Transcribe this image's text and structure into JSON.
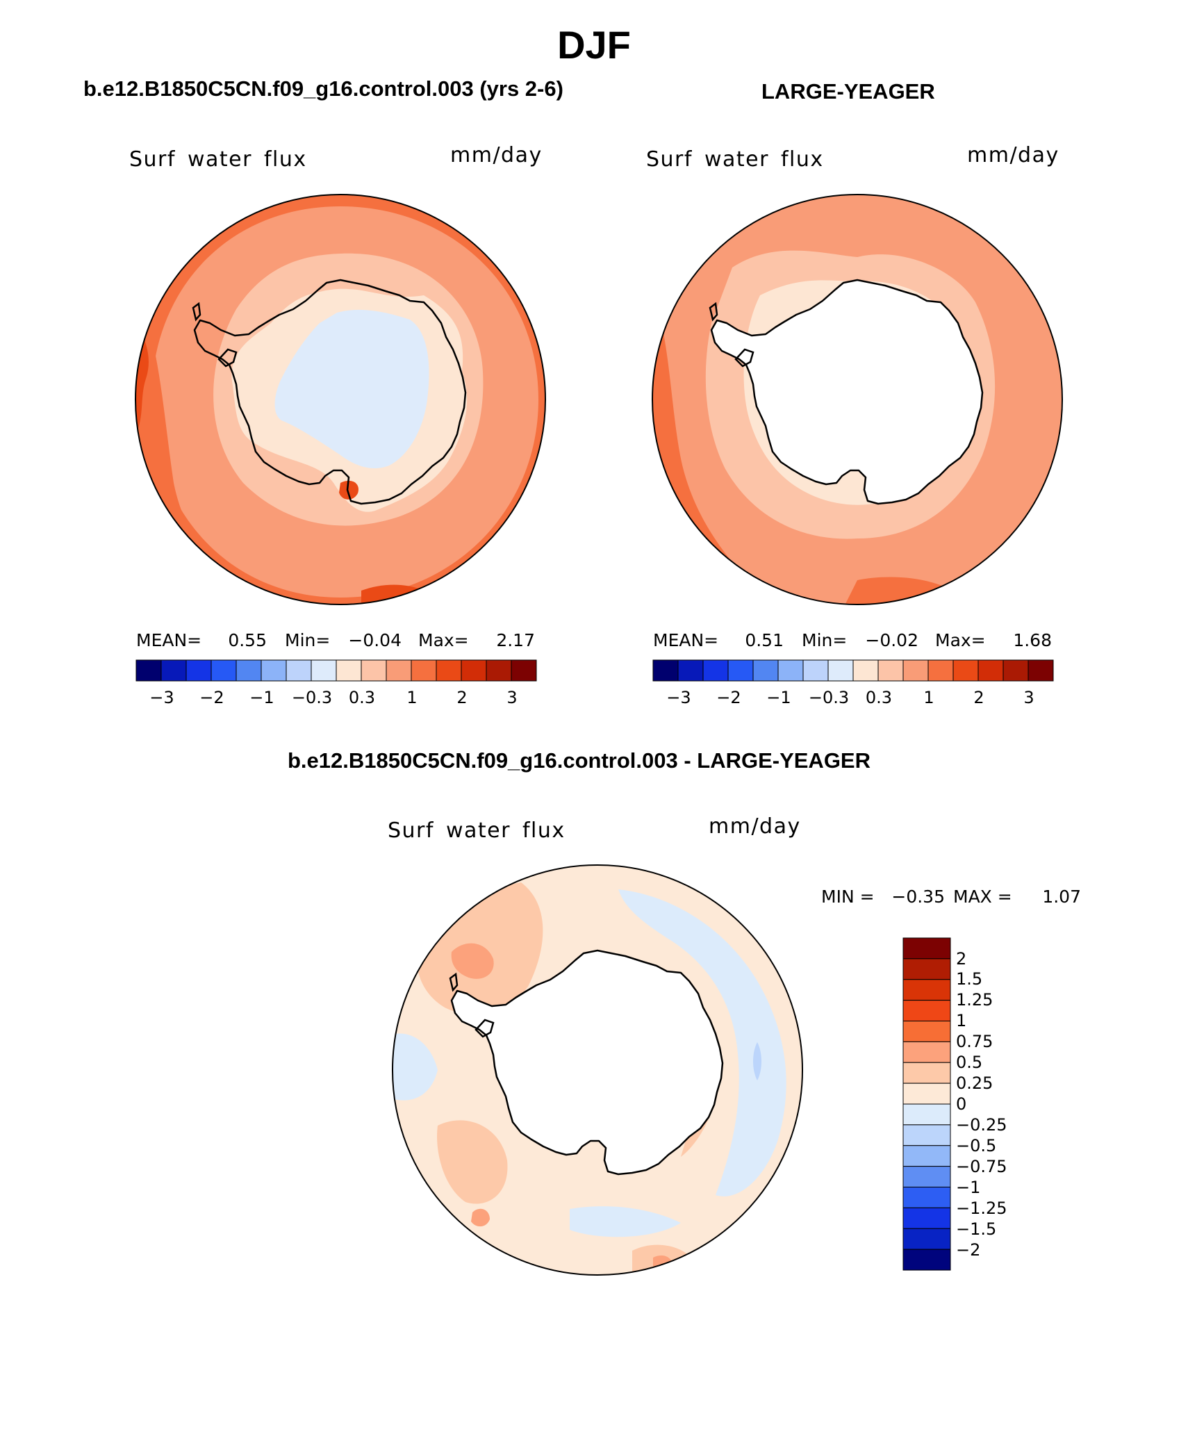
{
  "figure": {
    "title": "DJF"
  },
  "panels": [
    {
      "title": "b.e12.B1850C5CN.f09_g16.control.003 (yrs 2-6)",
      "variable": "Surf water flux",
      "units": "mm/day",
      "stats": {
        "mean_label": "MEAN=",
        "mean": "0.55",
        "min_label": "Min=",
        "min": "−0.04",
        "max_label": "Max=",
        "max": "2.17"
      },
      "colorbar_ticks": [
        "−3",
        "−2",
        "−1",
        "−0.3",
        "0.3",
        "1",
        "2",
        "3"
      ]
    },
    {
      "title": "LARGE-YEAGER",
      "variable": "Surf water flux",
      "units": "mm/day",
      "stats": {
        "mean_label": "MEAN=",
        "mean": "0.51",
        "min_label": "Min=",
        "min": "−0.02",
        "max_label": "Max=",
        "max": "1.68"
      },
      "colorbar_ticks": [
        "−3",
        "−2",
        "−1",
        "−0.3",
        "0.3",
        "1",
        "2",
        "3"
      ]
    },
    {
      "title": "b.e12.B1850C5CN.f09_g16.control.003 - LARGE-YEAGER",
      "variable": "Surf water flux",
      "units": "mm/day",
      "stats": {
        "min_label": "MIN =",
        "min": "−0.35",
        "max_label": "MAX =",
        "max": "1.07"
      },
      "colorbar_ticks": [
        "2",
        "1.5",
        "1.25",
        "1",
        "0.75",
        "0.5",
        "0.25",
        "0",
        "−0.25",
        "−0.5",
        "−0.75",
        "−1",
        "−1.25",
        "−1.5",
        "−2"
      ]
    }
  ],
  "colors": {
    "abs_scale": [
      "#00006e",
      "#0719b9",
      "#1434e6",
      "#2659f5",
      "#5286f2",
      "#8cb3f8",
      "#bdd3fb",
      "#deebfb",
      "#fde6d3",
      "#fcc4a8",
      "#f99c77",
      "#f5703f",
      "#ea4a16",
      "#d22d07",
      "#aa1a04",
      "#7c0202"
    ],
    "diff_scale": [
      "#7c0202",
      "#b01d03",
      "#d93407",
      "#ef4716",
      "#f76e35",
      "#fca27c",
      "#fdc9a9",
      "#fde9d7",
      "#dcebfb",
      "#bcd5fb",
      "#92b8f8",
      "#5f8ef3",
      "#2d5ef3",
      "#1434e6",
      "#0823c4",
      "#00047d"
    ],
    "land_mask": "#ffffff",
    "coastline": "#000000"
  }
}
